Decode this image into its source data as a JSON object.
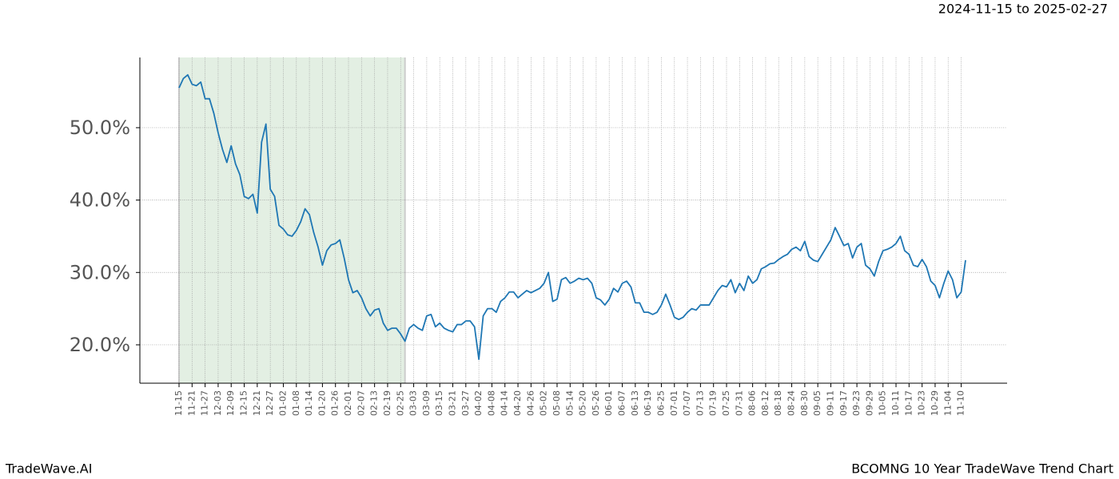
{
  "chart_data": {
    "type": "line",
    "title": "2024-11-15 to 2025-02-27",
    "footer_left": "TradeWave.AI",
    "footer_right": "BCOMNG 10 Year TradeWave Trend Chart",
    "categories": [
      "11-15",
      null,
      null,
      "11-21",
      null,
      null,
      "11-27",
      null,
      null,
      "12-03",
      null,
      null,
      "12-09",
      null,
      null,
      "12-15",
      null,
      null,
      "12-21",
      null,
      null,
      "12-27",
      null,
      null,
      "01-02",
      null,
      null,
      "01-08",
      null,
      null,
      "01-14",
      null,
      null,
      "01-20",
      null,
      null,
      "01-26",
      null,
      null,
      "02-01",
      null,
      null,
      "02-07",
      null,
      null,
      "02-13",
      null,
      null,
      "02-19",
      null,
      null,
      "02-25",
      null,
      null,
      "03-03",
      null,
      null,
      "03-09",
      null,
      null,
      "03-15",
      null,
      null,
      "03-21",
      null,
      null,
      "03-27",
      null,
      null,
      "04-02",
      null,
      null,
      "04-08",
      null,
      null,
      "04-14",
      null,
      null,
      "04-20",
      null,
      null,
      "04-26",
      null,
      null,
      "05-02",
      null,
      null,
      "05-08",
      null,
      null,
      "05-14",
      null,
      null,
      "05-20",
      null,
      null,
      "05-26",
      null,
      null,
      "06-01",
      null,
      null,
      "06-07",
      null,
      null,
      "06-13",
      null,
      null,
      "06-19",
      null,
      null,
      "06-25",
      null,
      null,
      "07-01",
      null,
      null,
      "07-07",
      null,
      null,
      "07-13",
      null,
      null,
      "07-19",
      null,
      null,
      "07-25",
      null,
      null,
      "07-31",
      null,
      null,
      "08-06",
      null,
      null,
      "08-12",
      null,
      null,
      "08-18",
      null,
      null,
      "08-24",
      null,
      null,
      "08-30",
      null,
      null,
      "09-05",
      null,
      null,
      "09-11",
      null,
      null,
      "09-17",
      null,
      null,
      "09-23",
      null,
      null,
      "09-29",
      null,
      null,
      "10-05",
      null,
      null,
      "10-11",
      null,
      null,
      "10-17",
      null,
      null,
      "10-23",
      null,
      null,
      "10-29",
      null,
      null,
      "11-04",
      null,
      null,
      "11-10",
      null
    ],
    "values": [
      55.5,
      56.8,
      57.3,
      56,
      55.8,
      56.3,
      54,
      54,
      52,
      49.3,
      47,
      45.2,
      47.5,
      45,
      43.5,
      40.5,
      40.2,
      40.8,
      38.2,
      48,
      50.5,
      41.5,
      40.5,
      36.5,
      36,
      35.2,
      35,
      35.8,
      37,
      38.8,
      38,
      35.5,
      33.5,
      31,
      33,
      33.8,
      34,
      34.5,
      32,
      29,
      27.2,
      27.5,
      26.5,
      25,
      24,
      24.8,
      25,
      23,
      22,
      22.3,
      22.3,
      21.5,
      20.5,
      22.3,
      22.8,
      22.3,
      22,
      24,
      24.2,
      22.5,
      23,
      22.3,
      22,
      21.8,
      22.8,
      22.8,
      23.3,
      23.3,
      22.5,
      18,
      24,
      25,
      25,
      24.5,
      26,
      26.5,
      27.3,
      27.3,
      26.5,
      27,
      27.5,
      27.2,
      27.5,
      27.8,
      28.5,
      30,
      26,
      26.3,
      29,
      29.3,
      28.5,
      28.8,
      29.2,
      29,
      29.2,
      28.5,
      26.5,
      26.2,
      25.5,
      26.3,
      27.8,
      27.3,
      28.5,
      28.8,
      28,
      25.8,
      25.8,
      24.5,
      24.5,
      24.2,
      24.5,
      25.5,
      27,
      25.5,
      23.8,
      23.5,
      23.8,
      24.5,
      25,
      24.8,
      25.5,
      25.5,
      25.5,
      26.5,
      27.5,
      28.2,
      28,
      29,
      27.2,
      28.5,
      27.5,
      29.5,
      28.5,
      29,
      30.5,
      30.8,
      31.2,
      31.3,
      31.8,
      32.2,
      32.5,
      33.2,
      33.5,
      33,
      34.3,
      32.2,
      31.7,
      31.5,
      32.5,
      33.5,
      34.5,
      36.2,
      35,
      33.7,
      34,
      32,
      33.5,
      34,
      31,
      30.5,
      29.5,
      31.5,
      33,
      33.2,
      33.5,
      34,
      35,
      33,
      32.5,
      31,
      30.8,
      31.8,
      30.8,
      28.8,
      28.2,
      26.5,
      28.5,
      30.2,
      29,
      26.5,
      27.3,
      31.7
    ],
    "color": "#1f77b4",
    "shaded_categories": [
      0,
      52
    ],
    "shade_color": "#e3efe3",
    "ylim": [
      14.7,
      59.7
    ],
    "yticks": [
      {
        "value": 20,
        "label": "20.0%"
      },
      {
        "value": 30,
        "label": "30.0%"
      },
      {
        "value": 40,
        "label": "40.0%"
      },
      {
        "value": 50,
        "label": "50.0%"
      }
    ],
    "grid": true
  }
}
